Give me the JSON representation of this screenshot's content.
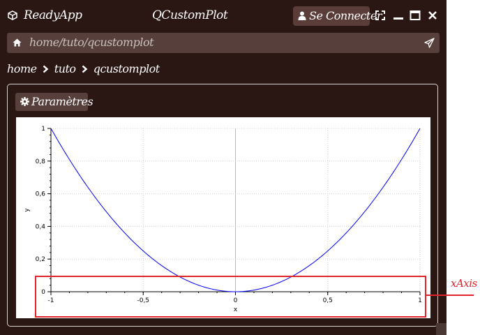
{
  "app": {
    "name": "ReadyApp",
    "window_title": "QCustomPlot",
    "connect_label": "Se Connecter"
  },
  "urlbar": {
    "url": "home/tuto/qcustomplot"
  },
  "breadcrumb": [
    "home",
    "tuto",
    "qcustomplot"
  ],
  "panel": {
    "params_label": "Paramètres"
  },
  "annotation": {
    "label": "xAxis",
    "color": "#e0242b"
  },
  "colors": {
    "background": "#2a1714",
    "button": "#57403c",
    "curve": "#0000ff",
    "grid": "#c8c8c8"
  },
  "chart_data": {
    "type": "line",
    "function": "y = x^2",
    "x": [
      -1,
      -0.9,
      -0.8,
      -0.7,
      -0.6,
      -0.5,
      -0.4,
      -0.3,
      -0.2,
      -0.1,
      0,
      0.1,
      0.2,
      0.3,
      0.4,
      0.5,
      0.6,
      0.7,
      0.8,
      0.9,
      1
    ],
    "series": [
      {
        "values": [
          1,
          0.81,
          0.64,
          0.49,
          0.36,
          0.25,
          0.16,
          0.09,
          0.04,
          0.01,
          0,
          0.01,
          0.04,
          0.09,
          0.16,
          0.25,
          0.36,
          0.49,
          0.64,
          0.81,
          1
        ]
      }
    ],
    "xlabel": "x",
    "ylabel": "y",
    "xlim": [
      -1,
      1
    ],
    "ylim": [
      0,
      1
    ],
    "x_ticks": [
      "-1",
      "-0,5",
      "0",
      "0,5",
      "1"
    ],
    "y_ticks": [
      "0",
      "0,2",
      "0,4",
      "0,6",
      "0,8",
      "1"
    ],
    "grid": true
  }
}
